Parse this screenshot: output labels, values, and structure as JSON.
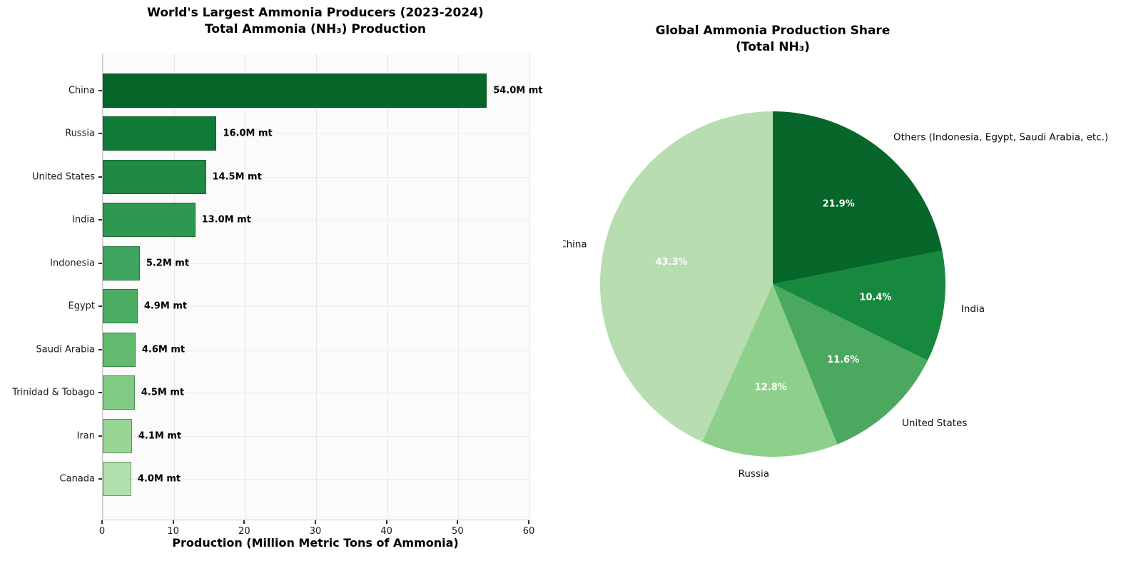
{
  "chart_data": [
    {
      "type": "bar",
      "orientation": "horizontal",
      "title_line1": "World's Largest Ammonia Producers (2023-2024)",
      "title_line2": "Total Ammonia (NH₃) Production",
      "xlabel": "Production (Million Metric Tons of Ammonia)",
      "categories": [
        "China",
        "Russia",
        "United States",
        "India",
        "Indonesia",
        "Egypt",
        "Saudi Arabia",
        "Trinidad & Tobago",
        "Iran",
        "Canada"
      ],
      "values": [
        54.0,
        16.0,
        14.5,
        13.0,
        5.2,
        4.9,
        4.6,
        4.5,
        4.1,
        4.0
      ],
      "bar_labels": [
        "54.0M mt",
        "16.0M mt",
        "14.5M mt",
        "13.0M mt",
        "5.2M mt",
        "4.9M mt",
        "4.6M mt",
        "4.5M mt",
        "4.1M mt",
        "4.0M mt"
      ],
      "bar_colors": [
        "#06662a",
        "#107b36",
        "#208944",
        "#2f9850",
        "#3fa55e",
        "#4bae63",
        "#62ba6e",
        "#80cb83",
        "#99d595",
        "#b2e0ac"
      ],
      "xlim": [
        0,
        60
      ],
      "xticks": [
        "0",
        "10",
        "20",
        "30",
        "40",
        "50",
        "60"
      ],
      "grid": true,
      "legend_position": "none"
    },
    {
      "type": "pie",
      "title_line1": "Global Ammonia Production Share",
      "title_line2": "(Total NH₃)",
      "labels": [
        "China",
        "Russia",
        "United States",
        "India",
        "Others (Indonesia, Egypt, Saudi Arabia, etc.)"
      ],
      "values": [
        43.3,
        12.8,
        11.6,
        10.4,
        21.9
      ],
      "pct_labels": [
        "43.3%",
        "12.8%",
        "11.6%",
        "10.4%",
        "21.9%"
      ],
      "colors": [
        "#b7ddb0",
        "#8ed08b",
        "#4aa95e",
        "#17893e",
        "#07662a"
      ],
      "start_angle": 90,
      "counterclock": true,
      "legend_position": "none"
    }
  ]
}
